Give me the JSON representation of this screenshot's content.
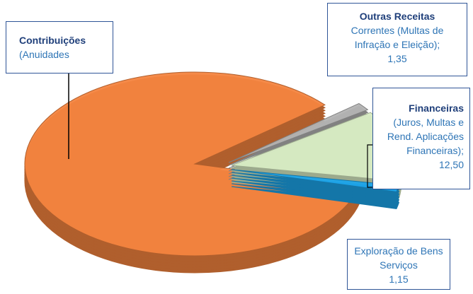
{
  "chart_data": {
    "type": "pie",
    "categories": [
      "Contribuições",
      "Outras Receitas",
      "Financeiras",
      "Exploração de Bens Serviços"
    ],
    "notes": [
      "(Anuidades",
      "Correntes (Multas de Infração e Eleição);",
      "(Juros, Multas e Rend. Aplicações Financeiras);",
      null
    ],
    "bold": [
      true,
      true,
      true,
      false
    ],
    "values": [
      85,
      1.35,
      12.5,
      1.15
    ],
    "value_labels": [
      null,
      "1,35",
      "12,50",
      "1,15"
    ],
    "colors": [
      "#f4843f",
      "#b3b3b3",
      "#d8ecc4",
      "#1ca4ea"
    ]
  }
}
